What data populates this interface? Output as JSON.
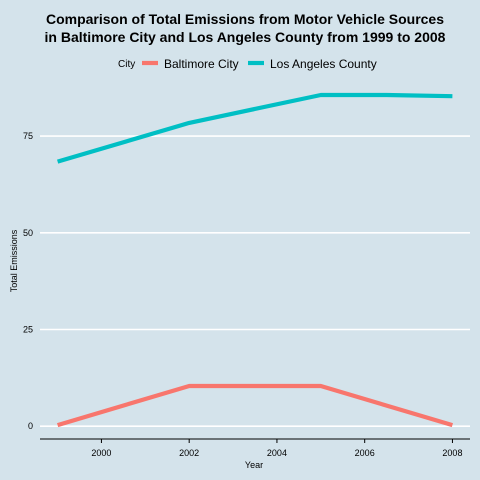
{
  "chart_data": {
    "type": "line",
    "title": "Comparison of Total Emissions from Motor Vehicle Sources",
    "subtitle": "in Baltimore City and Los Angeles County from 1999 to 2008",
    "xlabel": "Year",
    "ylabel": "Total Emissions",
    "legend_title": "City",
    "legend_position": "top",
    "xlim": [
      1998.6,
      2008.4
    ],
    "ylim": [
      -3.3,
      90
    ],
    "x_ticks": [
      2000,
      2002,
      2004,
      2006,
      2008
    ],
    "y_ticks": [
      0,
      25,
      50,
      75
    ],
    "grid": "horizontal major",
    "series": [
      {
        "name": "Baltimore City",
        "color": "#f8766d",
        "x": [
          1999,
          2002,
          2005,
          2008
        ],
        "values": [
          0.3,
          10.4,
          10.4,
          0.3
        ]
      },
      {
        "name": "Los Angeles County",
        "color": "#00bfc4",
        "x": [
          1999,
          2002,
          2005,
          2006.5,
          2008
        ],
        "values": [
          68.4,
          78.4,
          85.6,
          85.6,
          85.3
        ]
      }
    ]
  }
}
